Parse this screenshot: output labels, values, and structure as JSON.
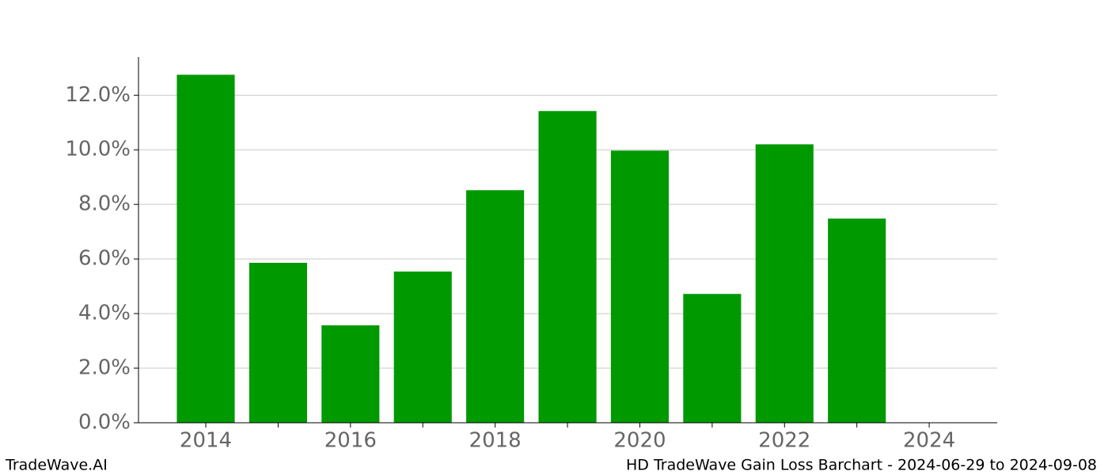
{
  "chart_data": {
    "type": "bar",
    "x": [
      2014,
      2015,
      2016,
      2017,
      2018,
      2019,
      2020,
      2021,
      2022,
      2023
    ],
    "values": [
      12.75,
      5.86,
      3.57,
      5.54,
      8.52,
      11.42,
      9.97,
      4.72,
      10.2,
      7.48
    ],
    "color": "#009900",
    "xlim": [
      2013.07,
      2024.94
    ],
    "xticks": [
      2014,
      2016,
      2018,
      2020,
      2022,
      2024
    ],
    "xminor_ticks": [
      2015,
      2017,
      2019,
      2021,
      2023
    ],
    "ylim": [
      0,
      13.4
    ],
    "yticks": [
      {
        "value": 0,
        "label": "0.0%"
      },
      {
        "value": 2,
        "label": "2.0%"
      },
      {
        "value": 4,
        "label": "4.0%"
      },
      {
        "value": 6,
        "label": "6.0%"
      },
      {
        "value": 8,
        "label": "8.0%"
      },
      {
        "value": 10,
        "label": "10.0%"
      },
      {
        "value": 12,
        "label": "12.0%"
      }
    ],
    "grid": true
  },
  "footer": {
    "left": "TradeWave.AI",
    "right": "HD TradeWave Gain Loss Barchart - 2024-06-29 to 2024-09-08"
  }
}
